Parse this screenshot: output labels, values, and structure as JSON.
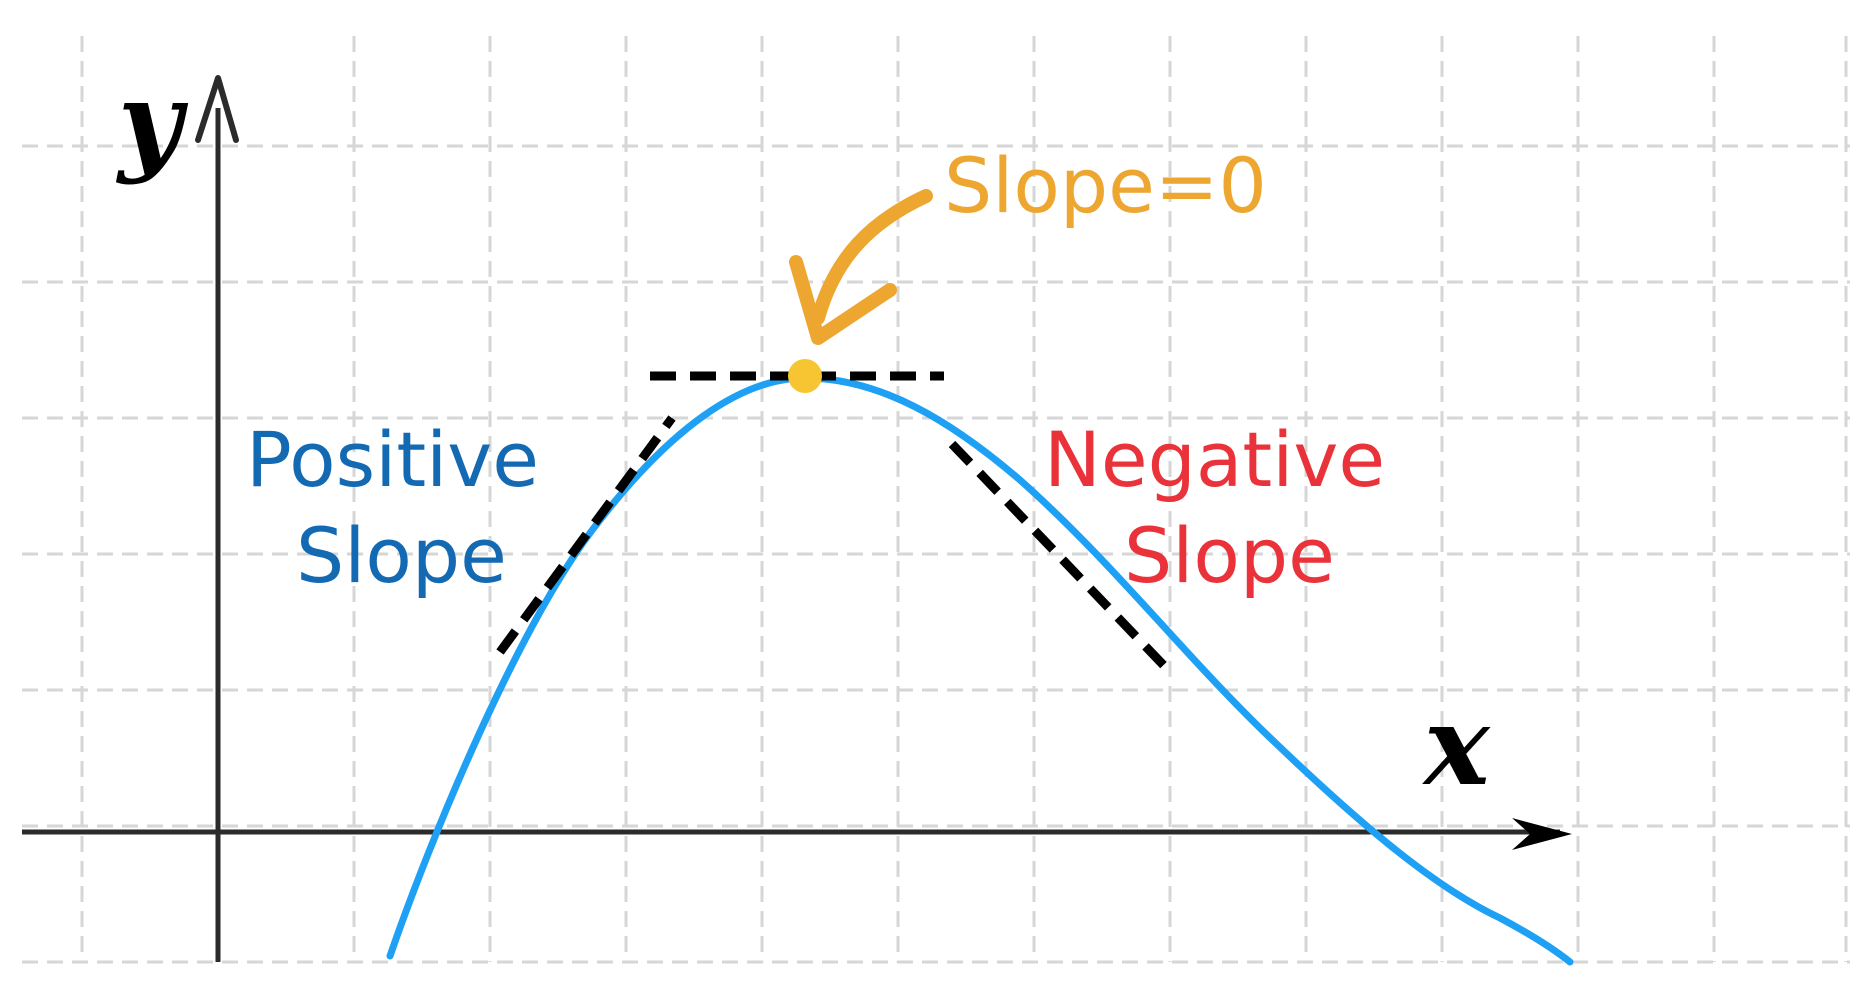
{
  "diagram": {
    "axis_labels": {
      "x": "x",
      "y": "y"
    },
    "annotations": {
      "zero_slope": "Slope=0",
      "positive_line1": "Positive",
      "positive_line2": "Slope",
      "negative_line1": "Negative",
      "negative_line2": "Slope"
    },
    "colors": {
      "curve": "#1ea0f5",
      "zero_slope": "#eda62f",
      "positive": "#1469b3",
      "negative": "#e9323a",
      "peak_point": "#f7c531",
      "tangent": "#000000",
      "grid": "#d6d6d6",
      "axis": "#2b2b2b"
    }
  }
}
